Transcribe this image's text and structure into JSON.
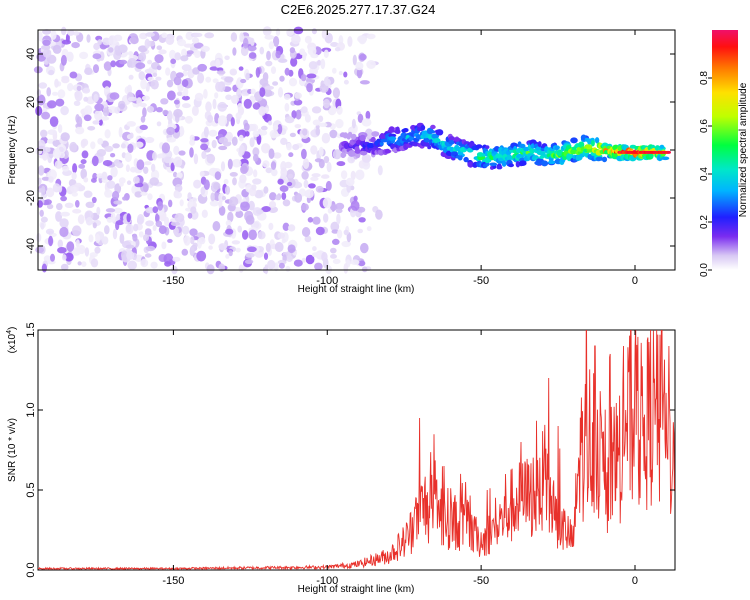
{
  "title": "C2E6.2025.277.17.37.G24",
  "chart_data": [
    {
      "type": "heatmap",
      "xlabel": "Height of straight line (km)",
      "ylabel": "Frequency (Hz)",
      "xlim": [
        -194,
        13
      ],
      "ylim": [
        -50,
        50
      ],
      "xticks": [
        -150,
        -100,
        -50,
        0
      ],
      "yticks": [
        40,
        20,
        0,
        -20,
        -40
      ],
      "colorbar": {
        "label": "Normalized spectral amplitude",
        "range": [
          0,
          1
        ],
        "ticks": [
          "0.0",
          "0.2",
          "0.4",
          "0.6",
          "0.8"
        ],
        "tick_values": [
          0.0,
          0.2,
          0.4,
          0.6,
          0.8
        ]
      },
      "noise_region": {
        "x_from": -194,
        "x_to": -85,
        "amplitude_range": [
          0.02,
          0.12
        ]
      },
      "ridge": [
        {
          "x": -95,
          "f": 2,
          "amp": 0.15
        },
        {
          "x": -85,
          "f": 2,
          "amp": 0.22
        },
        {
          "x": -80,
          "f": 4,
          "amp": 0.33
        },
        {
          "x": -75,
          "f": 5,
          "amp": 0.35
        },
        {
          "x": -70,
          "f": 6,
          "amp": 0.4
        },
        {
          "x": -65,
          "f": 5,
          "amp": 0.42
        },
        {
          "x": -60,
          "f": 1,
          "amp": 0.4
        },
        {
          "x": -55,
          "f": -1,
          "amp": 0.45
        },
        {
          "x": -50,
          "f": -3,
          "amp": 0.5
        },
        {
          "x": -45,
          "f": -3,
          "amp": 0.52
        },
        {
          "x": -40,
          "f": -2,
          "amp": 0.5
        },
        {
          "x": -35,
          "f": -1,
          "amp": 0.55
        },
        {
          "x": -30,
          "f": -2,
          "amp": 0.5
        },
        {
          "x": -25,
          "f": -2,
          "amp": 0.6
        },
        {
          "x": -20,
          "f": 0,
          "amp": 0.65
        },
        {
          "x": -15,
          "f": 1,
          "amp": 0.7
        },
        {
          "x": -10,
          "f": 0,
          "amp": 0.8
        },
        {
          "x": -5,
          "f": -1,
          "amp": 0.95
        },
        {
          "x": 0,
          "f": -1,
          "amp": 1.0
        },
        {
          "x": 5,
          "f": -1,
          "amp": 0.9
        },
        {
          "x": 10,
          "f": -1,
          "amp": 0.85
        }
      ]
    },
    {
      "type": "line",
      "xlabel": "Height of straight line (km)",
      "ylabel": "SNR (10 * v/v)",
      "yscale_label": "(x10",
      "yscale_exponent": "4",
      "yscale_close": ")",
      "xlim": [
        -194,
        13
      ],
      "ylim": [
        0,
        1.5
      ],
      "xticks": [
        -150,
        -100,
        -50,
        0
      ],
      "yticks": [
        0.0,
        0.5,
        1.0,
        1.5
      ],
      "ytick_labels": [
        "0.0",
        "0.5",
        "1.0",
        "1.5"
      ],
      "color": "#e8302a",
      "series": [
        {
          "name": "SNR",
          "x": [
            -194,
            -150,
            -100,
            -90,
            -80,
            -75,
            -72,
            -70,
            -68,
            -65,
            -60,
            -55,
            -50,
            -45,
            -40,
            -35,
            -32,
            -30,
            -28,
            -25,
            -22,
            -20,
            -18,
            -15,
            -13,
            -10,
            -8,
            -5,
            -3,
            0,
            3,
            5,
            8,
            10,
            13
          ],
          "values": [
            0.01,
            0.01,
            0.02,
            0.04,
            0.1,
            0.2,
            0.3,
            0.4,
            0.45,
            0.4,
            0.35,
            0.3,
            0.2,
            0.3,
            0.45,
            0.5,
            0.55,
            0.6,
            0.5,
            0.35,
            0.25,
            0.2,
            0.8,
            0.9,
            1.0,
            0.6,
            0.7,
            0.8,
            1.0,
            1.05,
            0.95,
            1.1,
            1.0,
            0.9,
            0.8
          ]
        }
      ],
      "spikes": [
        {
          "x": -70,
          "y": 0.95
        },
        {
          "x": -62,
          "y": 0.65
        },
        {
          "x": -55,
          "y": 0.55
        },
        {
          "x": -48,
          "y": 0.5
        },
        {
          "x": -42,
          "y": 0.6
        },
        {
          "x": -37,
          "y": 0.8
        },
        {
          "x": -28,
          "y": 1.2
        },
        {
          "x": -25,
          "y": 0.9
        },
        {
          "x": -13,
          "y": 1.4
        },
        {
          "x": -8,
          "y": 1.35
        },
        {
          "x": -3,
          "y": 1.0
        },
        {
          "x": 0,
          "y": 1.4
        },
        {
          "x": 7,
          "y": 1.5
        },
        {
          "x": 11,
          "y": 1.4
        }
      ]
    }
  ]
}
